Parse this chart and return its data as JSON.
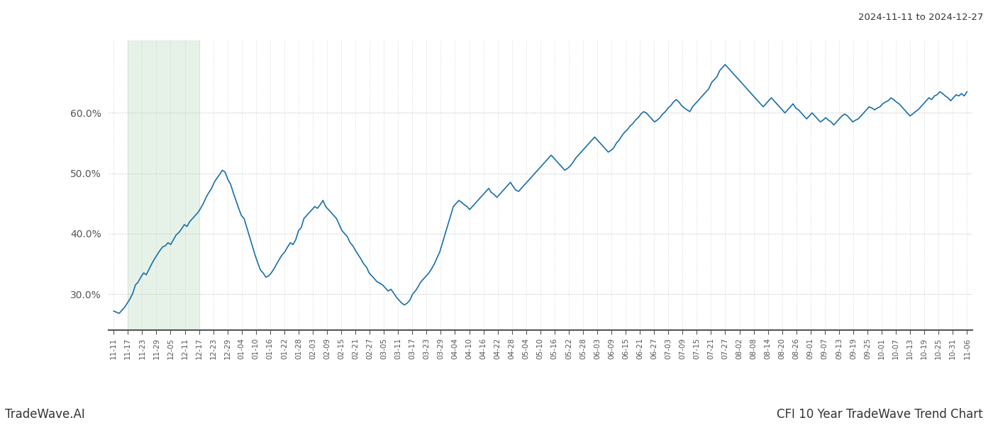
{
  "title_right": "2024-11-11 to 2024-12-27",
  "footer_left": "TradeWave.AI",
  "footer_right": "CFI 10 Year TradeWave Trend Chart",
  "line_color": "#1a6fa8",
  "line_width": 1.2,
  "shade_color": "#d6ead8",
  "shade_alpha": 0.6,
  "background_color": "#ffffff",
  "grid_color": "#c8c8c8",
  "ylim": [
    24,
    72
  ],
  "yticks": [
    30.0,
    40.0,
    50.0,
    60.0
  ],
  "x_labels": [
    "11-11",
    "11-17",
    "11-23",
    "11-29",
    "12-05",
    "12-11",
    "12-17",
    "12-23",
    "12-29",
    "01-04",
    "01-10",
    "01-16",
    "01-22",
    "01-28",
    "02-03",
    "02-09",
    "02-15",
    "02-21",
    "02-27",
    "03-05",
    "03-11",
    "03-17",
    "03-23",
    "03-29",
    "04-04",
    "04-10",
    "04-16",
    "04-22",
    "04-28",
    "05-04",
    "05-10",
    "05-16",
    "05-22",
    "05-28",
    "06-03",
    "06-09",
    "06-15",
    "06-21",
    "06-27",
    "07-03",
    "07-09",
    "07-15",
    "07-21",
    "07-27",
    "08-02",
    "08-08",
    "08-14",
    "08-20",
    "08-26",
    "09-01",
    "09-07",
    "09-13",
    "09-19",
    "09-25",
    "10-01",
    "10-07",
    "10-13",
    "10-19",
    "10-25",
    "10-31",
    "11-06"
  ],
  "shade_start_label": "11-17",
  "shade_end_label": "12-17",
  "values": [
    27.2,
    27.0,
    26.8,
    27.3,
    27.8,
    28.5,
    29.2,
    30.1,
    31.5,
    32.0,
    32.8,
    33.5,
    33.2,
    34.1,
    35.0,
    35.8,
    36.5,
    37.2,
    37.8,
    38.0,
    38.5,
    38.2,
    39.0,
    39.8,
    40.2,
    40.8,
    41.5,
    41.2,
    42.0,
    42.5,
    43.0,
    43.5,
    44.2,
    45.0,
    46.0,
    46.8,
    47.5,
    48.5,
    49.2,
    49.8,
    50.5,
    50.2,
    49.0,
    48.2,
    46.8,
    45.5,
    44.2,
    43.0,
    42.5,
    41.0,
    39.5,
    38.0,
    36.5,
    35.2,
    34.0,
    33.5,
    32.8,
    33.0,
    33.5,
    34.2,
    35.0,
    35.8,
    36.5,
    37.0,
    37.8,
    38.5,
    38.2,
    39.0,
    40.5,
    41.0,
    42.5,
    43.0,
    43.5,
    44.0,
    44.5,
    44.2,
    44.8,
    45.5,
    44.5,
    44.0,
    43.5,
    43.0,
    42.5,
    41.5,
    40.5,
    40.0,
    39.5,
    38.5,
    38.0,
    37.2,
    36.5,
    35.8,
    35.0,
    34.5,
    33.5,
    33.0,
    32.5,
    32.0,
    31.8,
    31.5,
    31.0,
    30.5,
    30.8,
    30.2,
    29.5,
    29.0,
    28.5,
    28.2,
    28.5,
    29.0,
    30.0,
    30.5,
    31.2,
    32.0,
    32.5,
    33.0,
    33.5,
    34.2,
    35.0,
    36.0,
    37.0,
    38.5,
    40.0,
    41.5,
    43.0,
    44.5,
    45.0,
    45.5,
    45.2,
    44.8,
    44.5,
    44.0,
    44.5,
    45.0,
    45.5,
    46.0,
    46.5,
    47.0,
    47.5,
    46.8,
    46.5,
    46.0,
    46.5,
    47.0,
    47.5,
    48.0,
    48.5,
    47.8,
    47.2,
    47.0,
    47.5,
    48.0,
    48.5,
    49.0,
    49.5,
    50.0,
    50.5,
    51.0,
    51.5,
    52.0,
    52.5,
    53.0,
    52.5,
    52.0,
    51.5,
    51.0,
    50.5,
    50.8,
    51.2,
    51.8,
    52.5,
    53.0,
    53.5,
    54.0,
    54.5,
    55.0,
    55.5,
    56.0,
    55.5,
    55.0,
    54.5,
    54.0,
    53.5,
    53.8,
    54.2,
    55.0,
    55.5,
    56.2,
    56.8,
    57.2,
    57.8,
    58.2,
    58.8,
    59.2,
    59.8,
    60.2,
    60.0,
    59.5,
    59.0,
    58.5,
    58.8,
    59.2,
    59.8,
    60.2,
    60.8,
    61.2,
    61.8,
    62.2,
    61.8,
    61.2,
    60.8,
    60.5,
    60.2,
    61.0,
    61.5,
    62.0,
    62.5,
    63.0,
    63.5,
    64.0,
    65.0,
    65.5,
    66.0,
    67.0,
    67.5,
    68.0,
    67.5,
    67.0,
    66.5,
    66.0,
    65.5,
    65.0,
    64.5,
    64.0,
    63.5,
    63.0,
    62.5,
    62.0,
    61.5,
    61.0,
    61.5,
    62.0,
    62.5,
    62.0,
    61.5,
    61.0,
    60.5,
    60.0,
    60.5,
    61.0,
    61.5,
    60.8,
    60.5,
    60.0,
    59.5,
    59.0,
    59.5,
    60.0,
    59.5,
    59.0,
    58.5,
    58.8,
    59.2,
    58.8,
    58.5,
    58.0,
    58.5,
    59.0,
    59.5,
    59.8,
    59.5,
    59.0,
    58.5,
    58.8,
    59.0,
    59.5,
    60.0,
    60.5,
    61.0,
    60.8,
    60.5,
    60.8,
    61.0,
    61.5,
    61.8,
    62.0,
    62.5,
    62.2,
    61.8,
    61.5,
    61.0,
    60.5,
    60.0,
    59.5,
    59.8,
    60.2,
    60.5,
    61.0,
    61.5,
    62.0,
    62.5,
    62.2,
    62.8,
    63.0,
    63.5,
    63.2,
    62.8,
    62.5,
    62.0,
    62.5,
    63.0,
    62.8,
    63.2,
    62.8,
    63.5
  ]
}
